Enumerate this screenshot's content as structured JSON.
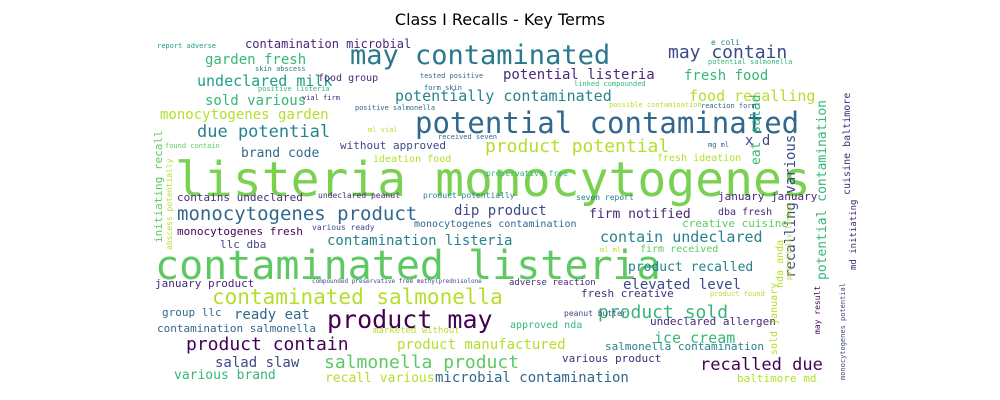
{
  "chart_data": {
    "type": "wordcloud",
    "title": "Class I Recalls - Key Terms",
    "words": [
      {
        "text": "listeria monocytogenes",
        "color": "#7ad151"
      },
      {
        "text": "contaminated listeria",
        "color": "#5ec962"
      },
      {
        "text": "potential contaminated",
        "color": "#31688e"
      },
      {
        "text": "may contaminated",
        "color": "#2a788e"
      },
      {
        "text": "contaminated salmonella",
        "color": "#b5de2b"
      },
      {
        "text": "product may",
        "color": "#440154"
      },
      {
        "text": "monocytogenes product",
        "color": "#31688e"
      },
      {
        "text": "product potential",
        "color": "#b5de2b"
      },
      {
        "text": "product contain",
        "color": "#440154"
      },
      {
        "text": "salmonella product",
        "color": "#5ec962"
      },
      {
        "text": "product sold",
        "color": "#35b779"
      },
      {
        "text": "may contain",
        "color": "#3e4989"
      },
      {
        "text": "potential listeria",
        "color": "#482878"
      },
      {
        "text": "due potential",
        "color": "#26828e"
      },
      {
        "text": "potentially contaminated",
        "color": "#26828e"
      },
      {
        "text": "food recalling",
        "color": "#b5de2b"
      },
      {
        "text": "undeclared milk",
        "color": "#1f9e89"
      },
      {
        "text": "contain undeclared",
        "color": "#26828e"
      },
      {
        "text": "recalled due",
        "color": "#440154"
      },
      {
        "text": "elevated level",
        "color": "#3e4989"
      },
      {
        "text": "ready eat",
        "color": "#31688e"
      },
      {
        "text": "ice cream",
        "color": "#35b779"
      },
      {
        "text": "product manufactured",
        "color": "#b5de2b"
      },
      {
        "text": "microbial contamination",
        "color": "#31688e"
      },
      {
        "text": "salad slaw",
        "color": "#3e4989"
      },
      {
        "text": "various brand",
        "color": "#35b779"
      },
      {
        "text": "recall various",
        "color": "#b5de2b"
      },
      {
        "text": "garden fresh",
        "color": "#35b779"
      },
      {
        "text": "fresh food",
        "color": "#35b779"
      },
      {
        "text": "monocytogenes garden",
        "color": "#b5de2b"
      },
      {
        "text": "sold various",
        "color": "#35b779"
      },
      {
        "text": "brand code",
        "color": "#31688e"
      },
      {
        "text": "dip product",
        "color": "#3e4989"
      },
      {
        "text": "firm notified",
        "color": "#482878"
      },
      {
        "text": "contamination listeria",
        "color": "#26828e"
      },
      {
        "text": "product recalled",
        "color": "#26828e"
      },
      {
        "text": "contamination microbial",
        "color": "#482878"
      },
      {
        "text": "eat salad",
        "color": "#35b779"
      },
      {
        "text": "potential contamination",
        "color": "#35b779"
      },
      {
        "text": "recalling various",
        "color": "#3e4989"
      },
      {
        "text": "x d",
        "color": "#3e4989"
      },
      {
        "text": "january january",
        "color": "#482878"
      },
      {
        "text": "contains undeclared",
        "color": "#472d7b"
      },
      {
        "text": "monocytogenes fresh",
        "color": "#440154"
      },
      {
        "text": "llc dba",
        "color": "#3e4989"
      },
      {
        "text": "dba fresh",
        "color": "#482878"
      },
      {
        "text": "creative cuisine",
        "color": "#5ec962"
      },
      {
        "text": "january product",
        "color": "#482878"
      },
      {
        "text": "group llc",
        "color": "#31688e"
      },
      {
        "text": "contamination salmonella",
        "color": "#31688e"
      },
      {
        "text": "undeclared allergen",
        "color": "#482878"
      },
      {
        "text": "salmonella contamination",
        "color": "#26828e"
      },
      {
        "text": "fresh creative",
        "color": "#472d7b"
      },
      {
        "text": "various product",
        "color": "#472d7b"
      },
      {
        "text": "baltimore md",
        "color": "#b5de2b"
      },
      {
        "text": "approved nda",
        "color": "#35b779"
      },
      {
        "text": "food group",
        "color": "#482878"
      },
      {
        "text": "without approved",
        "color": "#3e4989"
      },
      {
        "text": "ideation food",
        "color": "#b5de2b"
      },
      {
        "text": "fresh ideation",
        "color": "#b5de2b"
      },
      {
        "text": "firm received",
        "color": "#5ec962"
      },
      {
        "text": "preservative free",
        "color": "#35b779"
      },
      {
        "text": "monocytogenes contamination",
        "color": "#31688e"
      },
      {
        "text": "adverse reaction",
        "color": "#482878"
      },
      {
        "text": "product potentially",
        "color": "#26828e"
      },
      {
        "text": "undeclared peanut",
        "color": "#472d7b"
      },
      {
        "text": "seven report",
        "color": "#26828e"
      },
      {
        "text": "peanut butter",
        "color": "#3e4989"
      },
      {
        "text": "various ready",
        "color": "#3e4989"
      },
      {
        "text": "marketed without",
        "color": "#b5de2b"
      },
      {
        "text": "e coli",
        "color": "#26828e"
      },
      {
        "text": "potential salmonella",
        "color": "#35b779"
      },
      {
        "text": "skin abscess",
        "color": "#26828e"
      },
      {
        "text": "tested positive",
        "color": "#31688e"
      },
      {
        "text": "form skin",
        "color": "#31688e"
      },
      {
        "text": "linked compounded",
        "color": "#35b779"
      },
      {
        "text": "positive listeria",
        "color": "#35b779"
      },
      {
        "text": "vial firm",
        "color": "#482878"
      },
      {
        "text": "positive salmonella",
        "color": "#31688e"
      },
      {
        "text": "possible contamination",
        "color": "#b5de2b"
      },
      {
        "text": "reaction form",
        "color": "#31688e"
      },
      {
        "text": "received seven",
        "color": "#31688e"
      },
      {
        "text": "ml vial",
        "color": "#b5de2b"
      },
      {
        "text": "mg ml",
        "color": "#31688e"
      },
      {
        "text": "found contain",
        "color": "#5ec962"
      },
      {
        "text": "report adverse",
        "color": "#1f9e89"
      },
      {
        "text": "ml ml",
        "color": "#b5de2b"
      },
      {
        "text": "product found",
        "color": "#b5de2b"
      },
      {
        "text": "compounded preservative free methylprednisolone",
        "color": "#3e4989"
      },
      {
        "text": "initiating recall",
        "color": "#5ec962"
      },
      {
        "text": "abscess potentially",
        "color": "#b5de2b"
      },
      {
        "text": "nda anda",
        "color": "#b5de2b"
      },
      {
        "text": "sold january",
        "color": "#b5de2b"
      },
      {
        "text": "md initiating",
        "color": "#482878"
      },
      {
        "text": "cuisine baltimore",
        "color": "#482878"
      },
      {
        "text": "potentially linked",
        "color": "#b5de2b"
      },
      {
        "text": "may result",
        "color": "#440154"
      },
      {
        "text": "monocytogenes potential",
        "color": "#3e4989"
      }
    ]
  }
}
